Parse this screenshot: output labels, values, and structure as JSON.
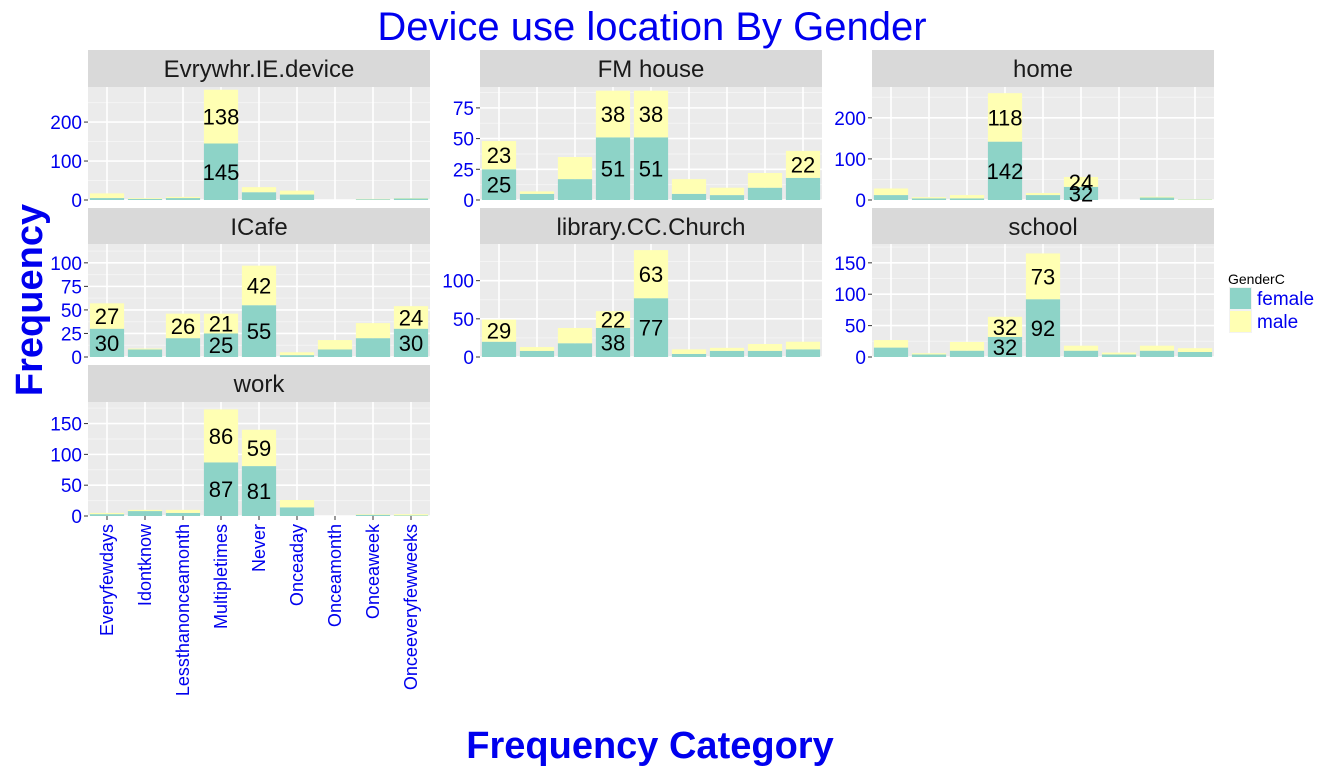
{
  "chart_data": {
    "type": "bar",
    "stacked": true,
    "faceted": true,
    "title": "Device use location By Gender",
    "xlabel": "Frequency Category",
    "ylabel": "Frequency",
    "categories": [
      "Everyfewdays",
      "Idontknow",
      "Lessthanonceamonth",
      "Multipletimes",
      "Never",
      "Onceaday",
      "Onceamonth",
      "Onceaweek",
      "Onceeveryfewweeks"
    ],
    "legend": {
      "title": "GenderC",
      "placement": "right",
      "entries": [
        {
          "name": "female",
          "color": "#8dd3c7"
        },
        {
          "name": "male",
          "color": "#ffffb3"
        }
      ]
    },
    "grid": true,
    "panels": [
      {
        "name": "Evrywhr.IE.device",
        "ylim": [
          0,
          290
        ],
        "yticks": [
          0,
          100,
          200
        ],
        "female": [
          5,
          3,
          5,
          145,
          20,
          14,
          0,
          2,
          4
        ],
        "male": [
          12,
          2,
          3,
          138,
          13,
          10,
          0,
          1,
          1
        ],
        "labels": [
          {
            "cat": 3,
            "series": "female",
            "text": "145"
          },
          {
            "cat": 3,
            "series": "male",
            "text": "138"
          }
        ]
      },
      {
        "name": "FM house",
        "ylim": [
          0,
          92
        ],
        "yticks": [
          0,
          25,
          50,
          75
        ],
        "female": [
          25,
          5,
          17,
          51,
          51,
          5,
          4,
          10,
          18
        ],
        "male": [
          23,
          2,
          18,
          38,
          38,
          12,
          6,
          12,
          22
        ],
        "labels": [
          {
            "cat": 0,
            "series": "female",
            "text": "25"
          },
          {
            "cat": 0,
            "series": "male",
            "text": "23"
          },
          {
            "cat": 3,
            "series": "female",
            "text": "51"
          },
          {
            "cat": 3,
            "series": "male",
            "text": "38"
          },
          {
            "cat": 4,
            "series": "female",
            "text": "51"
          },
          {
            "cat": 4,
            "series": "male",
            "text": "38"
          },
          {
            "cat": 8,
            "series": "male",
            "text": "22"
          }
        ]
      },
      {
        "name": "home",
        "ylim": [
          0,
          275
        ],
        "yticks": [
          0,
          100,
          200
        ],
        "female": [
          12,
          4,
          4,
          142,
          12,
          32,
          0,
          6,
          1
        ],
        "male": [
          16,
          3,
          8,
          118,
          5,
          24,
          0,
          2,
          1
        ],
        "labels": [
          {
            "cat": 3,
            "series": "female",
            "text": "142"
          },
          {
            "cat": 3,
            "series": "male",
            "text": "118"
          },
          {
            "cat": 5,
            "series": "female",
            "text": "32"
          },
          {
            "cat": 5,
            "series": "male",
            "text": "24"
          }
        ]
      },
      {
        "name": "ICafe",
        "ylim": [
          0,
          120
        ],
        "yticks": [
          0,
          25,
          50,
          75,
          100
        ],
        "female": [
          30,
          8,
          20,
          25,
          55,
          2,
          8,
          20,
          30
        ],
        "male": [
          27,
          1,
          26,
          21,
          42,
          3,
          10,
          16,
          24
        ],
        "labels": [
          {
            "cat": 0,
            "series": "female",
            "text": "30"
          },
          {
            "cat": 0,
            "series": "male",
            "text": "27"
          },
          {
            "cat": 2,
            "series": "male",
            "text": "26"
          },
          {
            "cat": 3,
            "series": "female",
            "text": "25"
          },
          {
            "cat": 3,
            "series": "male",
            "text": "21"
          },
          {
            "cat": 4,
            "series": "female",
            "text": "55"
          },
          {
            "cat": 4,
            "series": "male",
            "text": "42"
          },
          {
            "cat": 8,
            "series": "female",
            "text": "30"
          },
          {
            "cat": 8,
            "series": "male",
            "text": "24"
          }
        ]
      },
      {
        "name": "library.CC.Church",
        "ylim": [
          0,
          148
        ],
        "yticks": [
          0,
          50,
          100
        ],
        "female": [
          20,
          8,
          18,
          38,
          77,
          4,
          8,
          8,
          10
        ],
        "male": [
          29,
          5,
          20,
          22,
          63,
          6,
          4,
          9,
          10
        ],
        "labels": [
          {
            "cat": 0,
            "series": "male",
            "text": "29"
          },
          {
            "cat": 3,
            "series": "female",
            "text": "38"
          },
          {
            "cat": 3,
            "series": "male",
            "text": "22"
          },
          {
            "cat": 4,
            "series": "female",
            "text": "77"
          },
          {
            "cat": 4,
            "series": "male",
            "text": "63"
          }
        ]
      },
      {
        "name": "school",
        "ylim": [
          0,
          180
        ],
        "yticks": [
          0,
          50,
          100,
          150
        ],
        "female": [
          15,
          4,
          10,
          32,
          92,
          10,
          4,
          10,
          8
        ],
        "male": [
          12,
          2,
          14,
          32,
          73,
          8,
          3,
          8,
          6
        ],
        "labels": [
          {
            "cat": 3,
            "series": "female",
            "text": "32"
          },
          {
            "cat": 3,
            "series": "male",
            "text": "32"
          },
          {
            "cat": 4,
            "series": "female",
            "text": "92"
          },
          {
            "cat": 4,
            "series": "male",
            "text": "73"
          }
        ]
      },
      {
        "name": "work",
        "ylim": [
          0,
          185
        ],
        "yticks": [
          0,
          50,
          100,
          150
        ],
        "female": [
          3,
          8,
          5,
          87,
          81,
          14,
          0,
          2,
          1
        ],
        "male": [
          2,
          2,
          5,
          86,
          59,
          12,
          0,
          1,
          2
        ],
        "labels": [
          {
            "cat": 3,
            "series": "female",
            "text": "87"
          },
          {
            "cat": 3,
            "series": "male",
            "text": "86"
          },
          {
            "cat": 4,
            "series": "female",
            "text": "81"
          },
          {
            "cat": 4,
            "series": "male",
            "text": "59"
          }
        ]
      }
    ]
  }
}
